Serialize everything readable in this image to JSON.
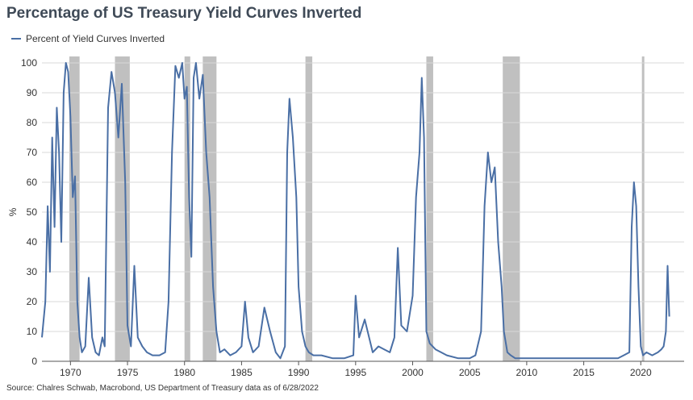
{
  "title": "Percentage of US Treasury Yield Curves Inverted",
  "source": "Source: Chalres Schwab, Macrobond, US Department of Treasury data as of 6/28/2022",
  "chart_data": {
    "type": "line",
    "title": "Percentage of US Treasury Yield Curves Inverted",
    "xlabel": "",
    "ylabel": "%",
    "xlim": [
      1967.5,
      2023.8
    ],
    "ylim": [
      0,
      100
    ],
    "xticks": [
      1970,
      1975,
      1980,
      1985,
      1990,
      1995,
      2000,
      2005,
      2010,
      2015,
      2020
    ],
    "yticks": [
      0,
      10,
      20,
      30,
      40,
      50,
      60,
      70,
      80,
      90,
      100
    ],
    "grid": true,
    "legend": "top-left",
    "line_color": "#4a6fa5",
    "recession_color": "#c0c0c0",
    "recessions": [
      [
        1969.9,
        1970.8
      ],
      [
        1973.9,
        1975.2
      ],
      [
        1980.0,
        1980.5
      ],
      [
        1981.6,
        1982.8
      ],
      [
        1990.6,
        1991.2
      ],
      [
        2001.2,
        2001.8
      ],
      [
        2007.9,
        2009.4
      ],
      [
        2020.1,
        2020.3
      ]
    ],
    "series": [
      {
        "name": "Percent of Yield Curves Inverted",
        "x": [
          1967.5,
          1967.8,
          1968.0,
          1968.2,
          1968.4,
          1968.6,
          1968.8,
          1969.0,
          1969.2,
          1969.4,
          1969.6,
          1969.8,
          1970.0,
          1970.2,
          1970.4,
          1970.6,
          1970.8,
          1971.0,
          1971.3,
          1971.6,
          1971.9,
          1972.2,
          1972.5,
          1972.8,
          1973.0,
          1973.3,
          1973.6,
          1973.9,
          1974.2,
          1974.5,
          1974.8,
          1975.0,
          1975.3,
          1975.6,
          1975.9,
          1976.3,
          1976.7,
          1977.2,
          1977.8,
          1978.3,
          1978.6,
          1978.9,
          1979.2,
          1979.5,
          1979.8,
          1980.0,
          1980.2,
          1980.4,
          1980.6,
          1980.8,
          1981.0,
          1981.3,
          1981.6,
          1981.9,
          1982.2,
          1982.5,
          1982.8,
          1983.1,
          1983.5,
          1984.0,
          1984.5,
          1985.0,
          1985.3,
          1985.6,
          1986.0,
          1986.5,
          1987.0,
          1987.5,
          1988.0,
          1988.4,
          1988.8,
          1989.0,
          1989.2,
          1989.5,
          1989.8,
          1990.0,
          1990.3,
          1990.6,
          1990.9,
          1991.3,
          1992.0,
          1993.0,
          1994.0,
          1994.8,
          1995.0,
          1995.3,
          1995.8,
          1996.5,
          1997.0,
          1997.5,
          1998.0,
          1998.4,
          1998.7,
          1999.0,
          1999.5,
          2000.0,
          2000.3,
          2000.6,
          2000.8,
          2001.0,
          2001.2,
          2001.5,
          2002.0,
          2002.5,
          2003.0,
          2004.0,
          2005.0,
          2005.5,
          2006.0,
          2006.3,
          2006.6,
          2006.9,
          2007.2,
          2007.5,
          2007.8,
          2008.0,
          2008.3,
          2008.6,
          2009.0,
          2010.0,
          2011.0,
          2012.0,
          2013.0,
          2014.0,
          2015.0,
          2016.0,
          2017.0,
          2018.0,
          2018.5,
          2019.0,
          2019.2,
          2019.4,
          2019.6,
          2019.8,
          2020.0,
          2020.2,
          2020.5,
          2021.0,
          2021.5,
          2021.8,
          2022.0,
          2022.2,
          2022.35,
          2022.5
        ],
        "values": [
          8,
          20,
          52,
          30,
          75,
          45,
          85,
          70,
          40,
          90,
          100,
          97,
          82,
          55,
          62,
          20,
          8,
          3,
          5,
          28,
          8,
          3,
          2,
          8,
          5,
          85,
          97,
          90,
          75,
          93,
          60,
          12,
          5,
          32,
          8,
          5,
          3,
          2,
          2,
          3,
          20,
          70,
          99,
          95,
          100,
          88,
          92,
          55,
          35,
          95,
          100,
          88,
          96,
          70,
          55,
          25,
          10,
          3,
          4,
          2,
          3,
          5,
          20,
          8,
          3,
          5,
          18,
          10,
          3,
          1,
          5,
          70,
          88,
          75,
          55,
          25,
          10,
          5,
          3,
          2,
          2,
          1,
          1,
          2,
          22,
          8,
          14,
          3,
          5,
          4,
          3,
          8,
          38,
          12,
          10,
          22,
          55,
          70,
          95,
          75,
          10,
          6,
          4,
          3,
          2,
          1,
          1,
          2,
          10,
          52,
          70,
          60,
          65,
          40,
          25,
          10,
          3,
          2,
          1,
          1,
          1,
          1,
          1,
          1,
          1,
          1,
          1,
          1,
          2,
          3,
          45,
          60,
          52,
          25,
          5,
          2,
          3,
          2,
          3,
          4,
          5,
          10,
          32,
          15
        ]
      }
    ]
  }
}
